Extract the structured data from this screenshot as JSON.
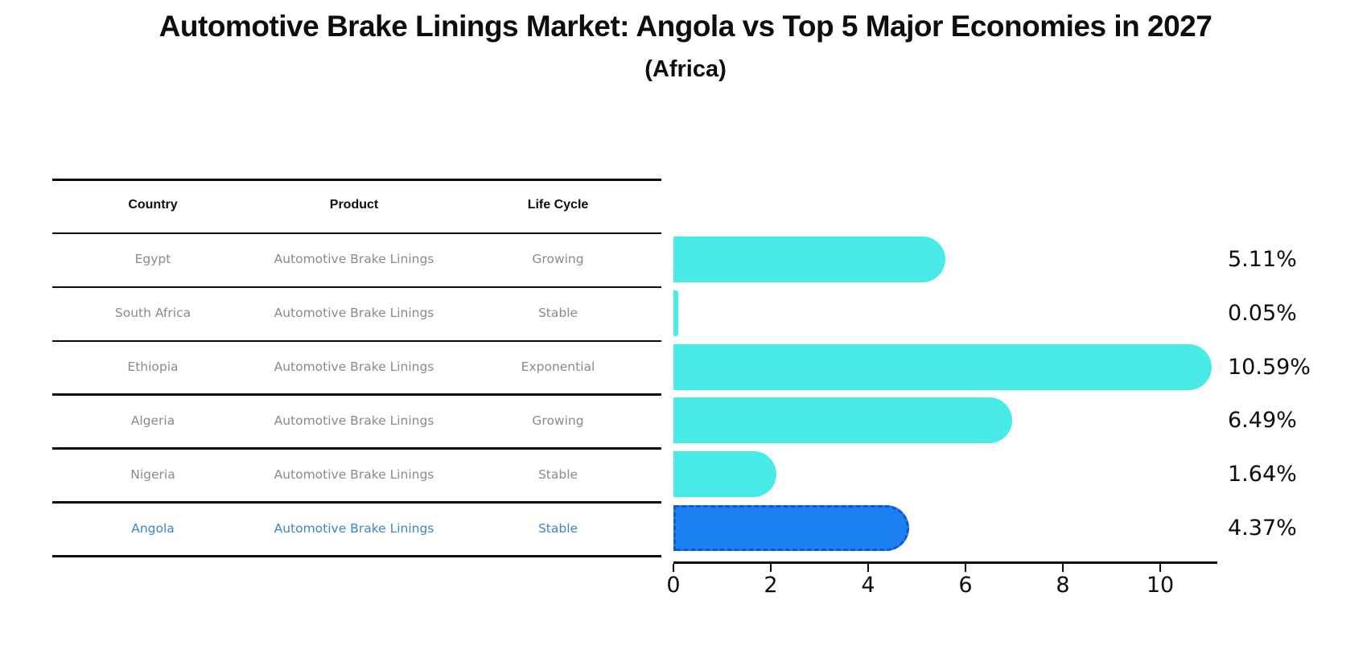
{
  "title": "Automotive Brake Linings Market: Angola vs Top 5 Major Economies in 2027",
  "subtitle": "(Africa)",
  "table": {
    "headers": [
      "Country",
      "Product",
      "Life Cycle"
    ],
    "rows": [
      {
        "country": "Egypt",
        "product": "Automotive Brake Linings",
        "life_cycle": "Growing",
        "value_label": "5.11%",
        "highlighted": false
      },
      {
        "country": "South Africa",
        "product": "Automotive Brake Linings",
        "life_cycle": "Stable",
        "value_label": "0.05%",
        "highlighted": false
      },
      {
        "country": "Ethiopia",
        "product": "Automotive Brake Linings",
        "life_cycle": "Exponential",
        "value_label": "10.59%",
        "highlighted": false
      },
      {
        "country": "Algeria",
        "product": "Automotive Brake Linings",
        "life_cycle": "Growing",
        "value_label": "6.49%",
        "highlighted": false
      },
      {
        "country": "Nigeria",
        "product": "Automotive Brake Linings",
        "life_cycle": "Stable",
        "value_label": "1.64%",
        "highlighted": false
      },
      {
        "country": "Angola",
        "product": "Automotive Brake Linings",
        "life_cycle": "Stable",
        "value_label": "4.37%",
        "highlighted": true
      }
    ]
  },
  "chart_data": {
    "type": "bar",
    "orientation": "horizontal",
    "title": "Automotive Brake Linings Market: Angola vs Top 5 Major Economies in 2027",
    "subtitle": "(Africa)",
    "categories": [
      "Egypt",
      "South Africa",
      "Ethiopia",
      "Algeria",
      "Nigeria",
      "Angola"
    ],
    "values": [
      5.11,
      0.05,
      10.59,
      6.49,
      1.64,
      4.37
    ],
    "value_labels": [
      "5.11%",
      "0.05%",
      "10.59%",
      "6.49%",
      "1.64%",
      "4.37%"
    ],
    "x_ticks": [
      0,
      2,
      4,
      6,
      8,
      10
    ],
    "xlim": [
      0,
      11.2
    ],
    "highlight_index": 5,
    "grid": false,
    "legend": "none"
  },
  "colors": {
    "bar": "#48ebe6",
    "highlight_fill": "#1b80f0",
    "highlight_border": "#1257d6",
    "link_text": "#3d85c6",
    "muted_text": "#8a8a8a",
    "line": "#0a0a0a"
  }
}
